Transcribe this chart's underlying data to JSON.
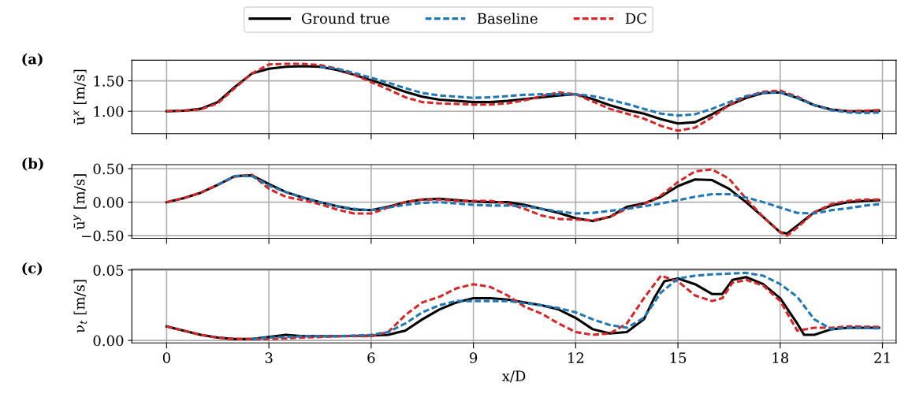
{
  "chart_data": [
    {
      "type": "line",
      "title": "(a)",
      "ylabel": "ū$^{x}$ [m/s]",
      "legend": "top",
      "grid": true,
      "tick_labels": "y",
      "xlim": [
        -1.02,
        21.4
      ],
      "xticks": [
        0,
        3,
        6,
        9,
        12,
        15,
        18,
        21
      ],
      "ylim": [
        0.63,
        1.84
      ],
      "yticks": [
        {
          "value": 1.0,
          "label": "1.00"
        },
        {
          "value": 1.5,
          "label": "1.50"
        }
      ],
      "series": [
        {
          "name": "Ground true",
          "color": "#000000",
          "line_style": "solid",
          "x": [
            0,
            0.5,
            1,
            1.5,
            2,
            2.5,
            3,
            3.5,
            4,
            4.5,
            5,
            5.5,
            6,
            6.5,
            7,
            7.5,
            8,
            8.5,
            9,
            9.5,
            10,
            10.5,
            11,
            11.5,
            12,
            12.5,
            13,
            13.5,
            14,
            14.5,
            15,
            15.5,
            16,
            16.5,
            17,
            17.5,
            18,
            18.5,
            19,
            19.5,
            20,
            20.5,
            20.9
          ],
          "values": [
            1.0,
            1.01,
            1.04,
            1.15,
            1.4,
            1.62,
            1.7,
            1.73,
            1.74,
            1.73,
            1.68,
            1.6,
            1.51,
            1.42,
            1.32,
            1.24,
            1.19,
            1.17,
            1.15,
            1.15,
            1.17,
            1.2,
            1.23,
            1.26,
            1.28,
            1.2,
            1.1,
            1.02,
            0.96,
            0.87,
            0.8,
            0.82,
            0.95,
            1.1,
            1.22,
            1.3,
            1.31,
            1.22,
            1.1,
            1.03,
            1.0,
            1.0,
            1.01
          ]
        },
        {
          "name": "Baseline",
          "color": "#1f77b4",
          "line_style": "dashed",
          "x": [
            4.5,
            5,
            5.5,
            6,
            6.5,
            7,
            7.5,
            8,
            8.5,
            9,
            9.5,
            10,
            10.5,
            11,
            11.5,
            12,
            12.5,
            13,
            13.5,
            14,
            14.5,
            15,
            15.5,
            16,
            16.5,
            17,
            17.5,
            18,
            18.5,
            19,
            19.5,
            20,
            20.5,
            20.9
          ],
          "values": [
            1.73,
            1.7,
            1.63,
            1.55,
            1.47,
            1.38,
            1.3,
            1.26,
            1.24,
            1.22,
            1.23,
            1.25,
            1.27,
            1.28,
            1.28,
            1.28,
            1.25,
            1.19,
            1.12,
            1.04,
            0.96,
            0.93,
            0.95,
            1.04,
            1.15,
            1.25,
            1.3,
            1.31,
            1.22,
            1.1,
            1.02,
            0.98,
            0.97,
            0.98
          ]
        },
        {
          "name": "DC",
          "color": "#d62728",
          "line_style": "dashed",
          "x": [
            0,
            0.5,
            1,
            1.5,
            2,
            2.5,
            3,
            3.5,
            4,
            4.5,
            5,
            5.5,
            6,
            6.5,
            7,
            7.5,
            8,
            8.5,
            9,
            9.5,
            10,
            10.5,
            11,
            11.5,
            12,
            12.5,
            13,
            13.5,
            14,
            14.5,
            15,
            15.5,
            16,
            16.5,
            17,
            17.5,
            18,
            18.5,
            19,
            19.5,
            20,
            20.5,
            20.9
          ],
          "values": [
            1.0,
            1.01,
            1.03,
            1.13,
            1.38,
            1.62,
            1.77,
            1.78,
            1.78,
            1.76,
            1.7,
            1.6,
            1.48,
            1.36,
            1.23,
            1.15,
            1.13,
            1.12,
            1.11,
            1.11,
            1.13,
            1.18,
            1.25,
            1.31,
            1.28,
            1.16,
            1.04,
            0.96,
            0.88,
            0.76,
            0.68,
            0.73,
            0.9,
            1.1,
            1.24,
            1.32,
            1.34,
            1.24,
            1.1,
            1.02,
            1.0,
            1.01,
            1.02
          ]
        }
      ]
    },
    {
      "type": "line",
      "title": "(b)",
      "ylabel": "ū$^{y}$ [m/s]",
      "grid": true,
      "tick_labels": "y",
      "xlim": [
        -1.02,
        21.4
      ],
      "xticks": [
        0,
        3,
        6,
        9,
        12,
        15,
        18,
        21
      ],
      "ylim": [
        -0.54,
        0.56
      ],
      "yticks": [
        {
          "value": -0.5,
          "label": "−0.50"
        },
        {
          "value": 0,
          "label": "0.00"
        },
        {
          "value": 0.5,
          "label": "0.50"
        }
      ],
      "series": [
        {
          "color": "#000000",
          "line_style": "solid",
          "x": [
            0,
            0.5,
            1,
            1.5,
            2,
            2.5,
            3,
            3.5,
            4,
            4.5,
            5,
            5.5,
            6,
            6.5,
            7,
            7.5,
            8,
            8.5,
            9,
            9.5,
            10,
            10.5,
            11,
            11.5,
            12,
            12.5,
            13,
            13.5,
            14,
            14.5,
            15,
            15.5,
            16,
            16.5,
            17,
            17.5,
            18,
            18.2,
            18.5,
            19,
            19.5,
            20,
            20.5,
            20.9
          ],
          "values": [
            0,
            0.06,
            0.14,
            0.26,
            0.39,
            0.4,
            0.27,
            0.15,
            0.07,
            0.0,
            -0.06,
            -0.11,
            -0.12,
            -0.07,
            0.0,
            0.04,
            0.05,
            0.03,
            0.01,
            0.0,
            0.0,
            -0.04,
            -0.1,
            -0.16,
            -0.24,
            -0.28,
            -0.22,
            -0.07,
            -0.02,
            0.08,
            0.24,
            0.34,
            0.33,
            0.2,
            0.0,
            -0.22,
            -0.45,
            -0.47,
            -0.35,
            -0.15,
            -0.05,
            0.0,
            0.02,
            0.03
          ]
        },
        {
          "color": "#1f77b4",
          "line_style": "dashed",
          "x": [
            1.5,
            2,
            2.5,
            3,
            3.5,
            4,
            4.5,
            5,
            5.5,
            6,
            6.5,
            7,
            7.5,
            8,
            8.5,
            9,
            9.5,
            10,
            10.5,
            11,
            11.5,
            12,
            12.5,
            13,
            13.5,
            14,
            14.5,
            15,
            15.5,
            16,
            16.5,
            17,
            17.5,
            18,
            18.5,
            19,
            19.5,
            20,
            20.5,
            20.9
          ],
          "values": [
            0.26,
            0.39,
            0.39,
            0.25,
            0.15,
            0.07,
            0.0,
            -0.06,
            -0.1,
            -0.12,
            -0.08,
            -0.04,
            -0.01,
            0.0,
            -0.02,
            -0.04,
            -0.05,
            -0.05,
            -0.06,
            -0.1,
            -0.14,
            -0.17,
            -0.16,
            -0.13,
            -0.1,
            -0.06,
            -0.02,
            0.03,
            0.08,
            0.12,
            0.12,
            0.07,
            0.0,
            -0.08,
            -0.16,
            -0.17,
            -0.12,
            -0.09,
            -0.05,
            -0.03
          ]
        },
        {
          "color": "#d62728",
          "line_style": "dashed",
          "x": [
            0,
            0.5,
            1,
            1.5,
            2,
            2.5,
            3,
            3.5,
            4,
            4.5,
            5,
            5.5,
            6,
            6.5,
            7,
            7.5,
            8,
            8.5,
            9,
            9.5,
            10,
            10.5,
            11,
            11.5,
            12,
            12.5,
            13,
            13.5,
            14,
            14.5,
            15,
            15.5,
            16,
            16.5,
            17,
            17.5,
            18,
            18.2,
            18.5,
            19,
            19.5,
            20,
            20.5,
            20.9
          ],
          "values": [
            0,
            0.06,
            0.14,
            0.26,
            0.38,
            0.41,
            0.2,
            0.08,
            0.03,
            -0.03,
            -0.11,
            -0.17,
            -0.17,
            -0.08,
            0.0,
            0.04,
            0.04,
            0.02,
            0.02,
            0.02,
            -0.02,
            -0.1,
            -0.2,
            -0.25,
            -0.26,
            -0.27,
            -0.22,
            -0.1,
            -0.03,
            0.1,
            0.3,
            0.46,
            0.49,
            0.35,
            0.05,
            -0.22,
            -0.45,
            -0.5,
            -0.38,
            -0.15,
            -0.03,
            0.02,
            0.04,
            0.04
          ]
        }
      ]
    },
    {
      "type": "line",
      "title": "(c)",
      "xlabel": "x/D",
      "ylabel": "ν$_{t}$ [m/s]",
      "grid": true,
      "xlim": [
        -1.02,
        21.4
      ],
      "xticks": [
        0,
        3,
        6,
        9,
        12,
        15,
        18,
        21
      ],
      "ylim": [
        -0.0017,
        0.0506
      ],
      "yticks": [
        {
          "value": 0,
          "label": "0.00"
        },
        {
          "value": 0.05,
          "label": "0.05"
        }
      ],
      "series": [
        {
          "color": "#000000",
          "line_style": "solid",
          "x": [
            0,
            0.5,
            1,
            1.5,
            2,
            2.5,
            3,
            3.5,
            4,
            5,
            6,
            6.5,
            7,
            7.5,
            8,
            8.5,
            9,
            9.5,
            10,
            11,
            11.5,
            12,
            12.5,
            13,
            13.5,
            14,
            14.3,
            14.6,
            15,
            15.5,
            16,
            16.3,
            16.6,
            17,
            17.5,
            18,
            18.5,
            18.7,
            19,
            19.5,
            20,
            20.9
          ],
          "values": [
            0.01,
            0.007,
            0.004,
            0.002,
            0.001,
            0.001,
            0.0025,
            0.004,
            0.003,
            0.003,
            0.0035,
            0.004,
            0.007,
            0.015,
            0.022,
            0.027,
            0.03,
            0.03,
            0.029,
            0.025,
            0.022,
            0.016,
            0.008,
            0.005,
            0.006,
            0.015,
            0.03,
            0.042,
            0.044,
            0.04,
            0.033,
            0.033,
            0.043,
            0.045,
            0.04,
            0.03,
            0.012,
            0.004,
            0.004,
            0.008,
            0.009,
            0.009
          ]
        },
        {
          "color": "#1f77b4",
          "line_style": "dashed",
          "x": [
            2.5,
            3,
            4,
            5,
            6,
            6.5,
            7,
            7.5,
            8,
            8.5,
            9,
            10,
            11,
            11.5,
            12,
            12.5,
            13,
            13.5,
            14,
            14.5,
            15,
            15.5,
            16,
            17,
            17.5,
            18,
            18.5,
            19,
            19.5,
            20,
            20.9
          ],
          "values": [
            0.001,
            0.002,
            0.003,
            0.003,
            0.004,
            0.006,
            0.012,
            0.02,
            0.025,
            0.028,
            0.028,
            0.028,
            0.025,
            0.023,
            0.02,
            0.015,
            0.011,
            0.009,
            0.016,
            0.034,
            0.044,
            0.046,
            0.047,
            0.048,
            0.046,
            0.04,
            0.031,
            0.015,
            0.008,
            0.009,
            0.0086
          ]
        },
        {
          "color": "#d62728",
          "line_style": "dashed",
          "x": [
            0,
            0.5,
            1,
            1.5,
            2,
            3,
            4,
            5,
            6,
            6.5,
            7,
            7.5,
            8,
            8.5,
            9,
            9.5,
            10,
            10.5,
            11,
            11.5,
            12,
            12.5,
            13,
            13.5,
            14,
            14.5,
            15,
            15.5,
            16,
            16.3,
            16.6,
            17,
            17.5,
            18,
            18.5,
            19,
            19.5,
            20,
            20.9
          ],
          "values": [
            0.01,
            0.007,
            0.004,
            0.002,
            0.001,
            0.001,
            0.002,
            0.003,
            0.003,
            0.006,
            0.018,
            0.027,
            0.031,
            0.037,
            0.04,
            0.038,
            0.032,
            0.024,
            0.019,
            0.012,
            0.006,
            0.004,
            0.005,
            0.012,
            0.03,
            0.046,
            0.042,
            0.032,
            0.028,
            0.03,
            0.041,
            0.043,
            0.039,
            0.028,
            0.007,
            0.009,
            0.009,
            0.01,
            0.0096
          ]
        }
      ]
    }
  ]
}
